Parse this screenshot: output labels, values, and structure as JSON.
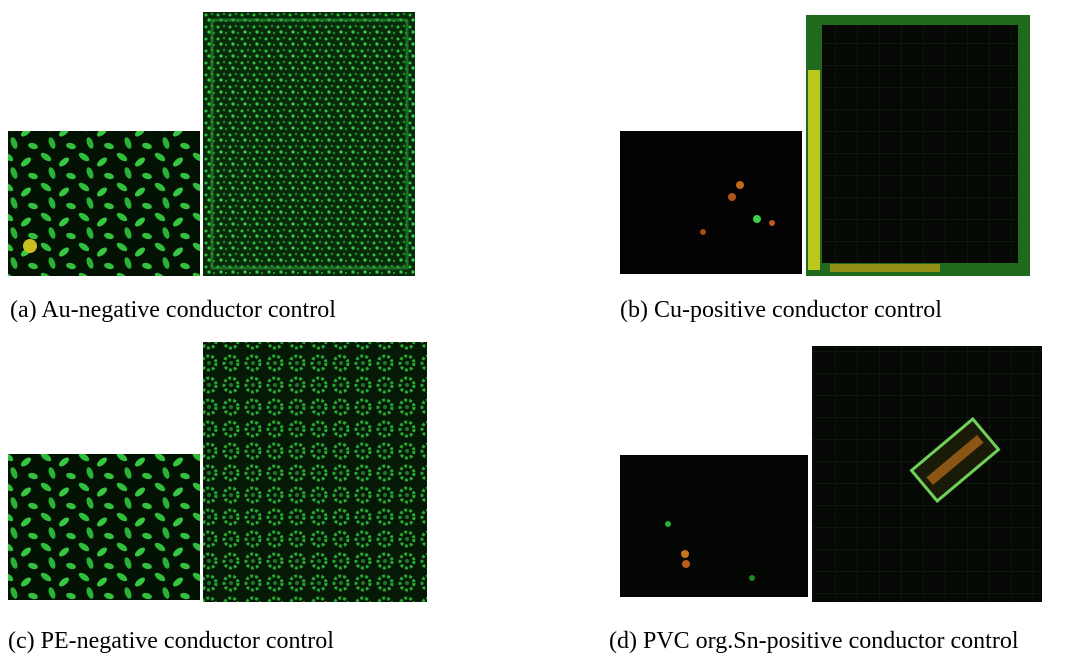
{
  "figure": {
    "panels": [
      {
        "caption": "(a) Au-negative conductor control"
      },
      {
        "caption": "(b) Cu-positive conductor control"
      },
      {
        "caption": "(c) PE-negative conductor control"
      },
      {
        "caption": "(d) PVC org.Sn-positive conductor control"
      }
    ]
  }
}
